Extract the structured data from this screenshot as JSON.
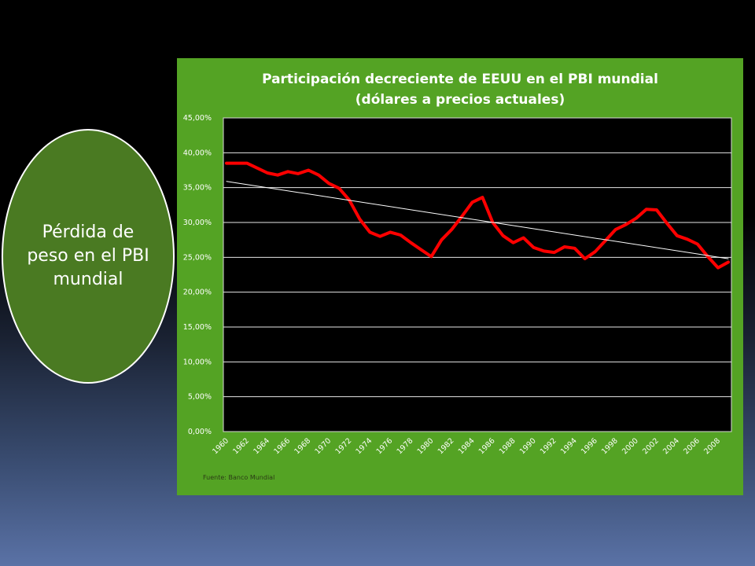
{
  "oval": {
    "text": "Pérdida de peso en el PBI mundial",
    "fill": "#4a7a22"
  },
  "panel": {
    "background": "#54a324"
  },
  "source": "Fuente: Banco Mundial",
  "chart_data": {
    "type": "line",
    "title_line1": "Participación decreciente de EEUU en el PBI mundial",
    "title_line2": "(dólares a precios actuales)",
    "xlabel": "",
    "ylabel": "",
    "ylim": [
      0,
      45
    ],
    "yticks": [
      0,
      5,
      10,
      15,
      20,
      25,
      30,
      35,
      40,
      45
    ],
    "ytick_labels": [
      "0,00%",
      "5,00%",
      "10,00%",
      "15,00%",
      "20,00%",
      "25,00%",
      "30,00%",
      "35,00%",
      "40,00%",
      "45,00%"
    ],
    "xtick_labels": [
      "1960",
      "1962",
      "1964",
      "1966",
      "1968",
      "1970",
      "1972",
      "1974",
      "1976",
      "1978",
      "1980",
      "1982",
      "1984",
      "1986",
      "1988",
      "1990",
      "1992",
      "1994",
      "1996",
      "1998",
      "2000",
      "2002",
      "2004",
      "2006",
      "2008"
    ],
    "grid": true,
    "legend": "none",
    "x": [
      1960,
      1961,
      1962,
      1963,
      1964,
      1965,
      1966,
      1967,
      1968,
      1969,
      1970,
      1971,
      1972,
      1973,
      1974,
      1975,
      1976,
      1977,
      1978,
      1979,
      1980,
      1981,
      1982,
      1983,
      1984,
      1985,
      1986,
      1987,
      1988,
      1989,
      1990,
      1991,
      1992,
      1993,
      1994,
      1995,
      1996,
      1997,
      1998,
      1999,
      2000,
      2001,
      2002,
      2003,
      2004,
      2005,
      2006,
      2007,
      2008,
      2009
    ],
    "series": [
      {
        "color": "#ff0000",
        "values": [
          38.5,
          38.5,
          38.5,
          37.8,
          37.1,
          36.8,
          37.3,
          37.0,
          37.5,
          36.8,
          35.6,
          34.9,
          33.2,
          30.5,
          28.6,
          28.0,
          28.6,
          28.2,
          27.1,
          26.1,
          25.1,
          27.5,
          29.0,
          30.9,
          32.9,
          33.6,
          30.0,
          28.1,
          27.1,
          27.8,
          26.4,
          25.9,
          25.7,
          26.5,
          26.3,
          24.8,
          25.8,
          27.4,
          29.0,
          29.7,
          30.6,
          31.9,
          31.8,
          29.9,
          28.1,
          27.6,
          26.9,
          25.1,
          23.5,
          24.3
        ],
        "line_width": "thick"
      },
      {
        "color": "#ffffff",
        "kind": "trendline",
        "x": [
          1960,
          2009
        ],
        "values": [
          35.9,
          24.8
        ],
        "line_width": "thin"
      }
    ]
  }
}
